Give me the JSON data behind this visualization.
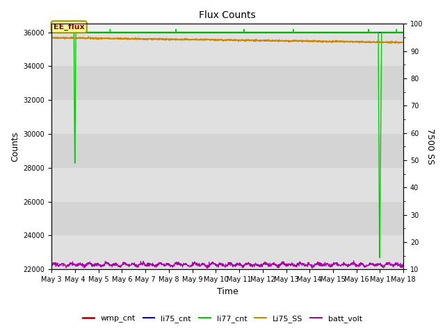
{
  "title": "Flux Counts",
  "xlabel": "Time",
  "ylabel_left": "Counts",
  "ylabel_right": "7500 SS",
  "ylim_left": [
    22000,
    36500
  ],
  "ylim_right": [
    10,
    100
  ],
  "yticks_left": [
    22000,
    24000,
    26000,
    28000,
    30000,
    32000,
    34000,
    36000
  ],
  "yticks_right": [
    10,
    20,
    30,
    40,
    50,
    60,
    70,
    80,
    90,
    100
  ],
  "xtick_labels": [
    "May 3",
    "May 4",
    "May 5",
    "May 6",
    "May 7",
    "May 8",
    "May 9",
    "May 10",
    "May 11",
    "May 12",
    "May 13",
    "May 14",
    "May 15",
    "May 16",
    "May 1",
    "May 18"
  ],
  "bg_color": "#e8e8e8",
  "annotation_text": "EE_flux",
  "annotation_color": "#8B0000",
  "annotation_bg": "#FFFF99",
  "annotation_border": "#999900",
  "colors": {
    "wmp_cnt": "#cc0000",
    "li75_cnt": "#0000cc",
    "li77_cnt": "#00cc00",
    "Li75_SS": "#cc8800",
    "batt_volt": "#aa00aa"
  },
  "title_fontsize": 10,
  "axis_fontsize": 9,
  "tick_fontsize": 7
}
